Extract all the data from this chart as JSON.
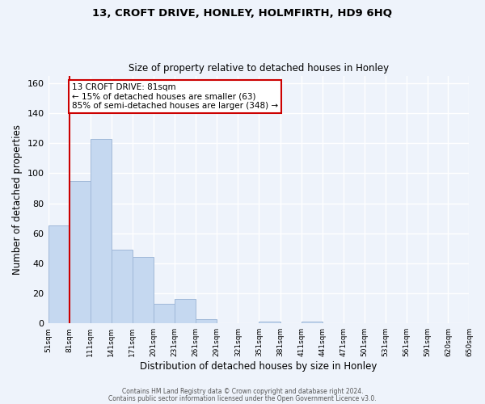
{
  "title": "13, CROFT DRIVE, HONLEY, HOLMFIRTH, HD9 6HQ",
  "subtitle": "Size of property relative to detached houses in Honley",
  "xlabel": "Distribution of detached houses by size in Honley",
  "ylabel": "Number of detached properties",
  "bin_edges": [
    51,
    81,
    111,
    141,
    171,
    201,
    231,
    261,
    291,
    321,
    351,
    381,
    411,
    441,
    471,
    501,
    531,
    561,
    591,
    620,
    650
  ],
  "bar_heights": [
    65,
    95,
    123,
    49,
    44,
    13,
    16,
    3,
    0,
    0,
    1,
    0,
    1,
    0,
    0,
    0,
    0,
    0,
    0,
    0
  ],
  "bar_color": "#c5d8f0",
  "bar_edgecolor": "#a0b8d8",
  "background_color": "#eef3fb",
  "grid_color": "#ffffff",
  "property_line_x": 81,
  "property_line_color": "#cc0000",
  "annotation_line1": "13 CROFT DRIVE: 81sqm",
  "annotation_line2": "← 15% of detached houses are smaller (63)",
  "annotation_line3": "85% of semi-detached houses are larger (348) →",
  "annotation_box_edgecolor": "#cc0000",
  "ylim": [
    0,
    165
  ],
  "yticks": [
    0,
    20,
    40,
    60,
    80,
    100,
    120,
    140,
    160
  ],
  "xtick_labels": [
    "51sqm",
    "81sqm",
    "111sqm",
    "141sqm",
    "171sqm",
    "201sqm",
    "231sqm",
    "261sqm",
    "291sqm",
    "321sqm",
    "351sqm",
    "381sqm",
    "411sqm",
    "441sqm",
    "471sqm",
    "501sqm",
    "531sqm",
    "561sqm",
    "591sqm",
    "620sqm",
    "650sqm"
  ],
  "footer_line1": "Contains HM Land Registry data © Crown copyright and database right 2024.",
  "footer_line2": "Contains public sector information licensed under the Open Government Licence v3.0."
}
